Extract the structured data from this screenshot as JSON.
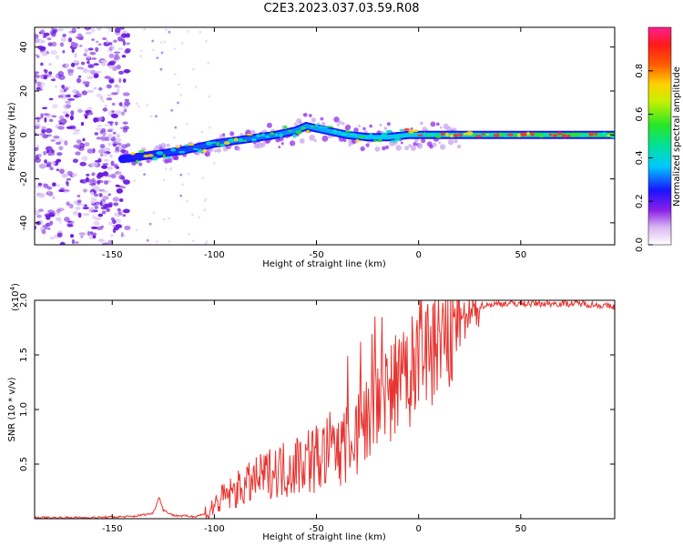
{
  "title": "C2E3.2023.037.03.59.R08",
  "colors": {
    "snr_line": "#e8332f",
    "bg": "#ffffff",
    "axis": "#000000"
  },
  "chart_data": [
    {
      "type": "heatmap",
      "xlabel": "Height of straight line (km)",
      "ylabel": "Frequency (Hz)",
      "xlim": [
        -188,
        96
      ],
      "ylim": [
        -50,
        49
      ],
      "xticks": [
        -150,
        -100,
        -50,
        0,
        50
      ],
      "yticks": [
        -40,
        -20,
        0,
        20,
        40
      ],
      "colorbar": {
        "label": "Normalized spectral amplitude",
        "range": [
          0,
          1
        ],
        "ticks": [
          "0.0",
          "0.2",
          "0.4",
          "0.6",
          "0.8"
        ],
        "tick_values": [
          0,
          0.2,
          0.4,
          0.6,
          0.8
        ]
      },
      "ridge": {
        "x": [
          -145,
          -130,
          -115,
          -100,
          -85,
          -70,
          -60,
          -55,
          -45,
          -35,
          -25,
          -15,
          -5,
          0,
          25,
          50,
          75,
          95
        ],
        "freq": [
          -11,
          -9,
          -7,
          -4,
          -2,
          0,
          2,
          4,
          2,
          0,
          -1,
          -1,
          0,
          0,
          0,
          0,
          0,
          0
        ]
      }
    },
    {
      "type": "line",
      "xlabel": "Height of straight line (km)",
      "ylabel": "SNR (10 * v/v)",
      "multiplier_label": "(x10",
      "multiplier_exp": "4",
      "multiplier_close": ")",
      "xlim": [
        -188,
        96
      ],
      "ylim": [
        0,
        2.0
      ],
      "xticks": [
        -150,
        -100,
        -50,
        0,
        50
      ],
      "yticks": [
        0.5,
        1.0,
        1.5,
        2.0
      ],
      "ytick_labels": [
        "0.5",
        "1.0",
        "1.5",
        "2.0"
      ],
      "series": [
        {
          "name": "SNR",
          "x": [
            -188,
            -160,
            -140,
            -130,
            -127,
            -125,
            -120,
            -110,
            -103,
            -100,
            -95,
            -90,
            -85,
            -80,
            -75,
            -70,
            -65,
            -60,
            -55,
            -50,
            -45,
            -40,
            -35,
            -30,
            -25,
            -20,
            -15,
            -10,
            -5,
            0,
            5,
            10,
            15,
            20,
            25,
            30,
            40,
            60,
            80,
            96
          ],
          "y": [
            0.01,
            0.01,
            0.02,
            0.05,
            0.2,
            0.08,
            0.03,
            0.02,
            0.05,
            0.12,
            0.2,
            0.25,
            0.3,
            0.35,
            0.4,
            0.45,
            0.45,
            0.5,
            0.55,
            0.55,
            0.6,
            0.65,
            0.7,
            0.8,
            0.9,
            1.0,
            1.1,
            1.2,
            1.3,
            1.4,
            1.55,
            1.6,
            1.7,
            1.75,
            1.85,
            1.95,
            1.97,
            1.97,
            1.97,
            1.94
          ]
        }
      ]
    }
  ]
}
